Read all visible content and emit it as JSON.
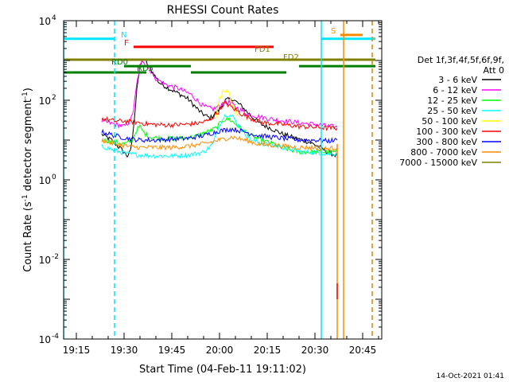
{
  "chart_data": {
    "type": "line",
    "title": "RHESSI Count Rates",
    "xlabel": "Start Time (04-Feb-11 19:11:02)",
    "ylabel_parts": [
      "Count Rate (s",
      "-1",
      " detector segment",
      "-1",
      ")"
    ],
    "footer_date": "14-Oct-2021 01:41",
    "y_scale": "log",
    "ylim": [
      0.0001,
      10000
    ],
    "y_ticks": [
      {
        "value": 0.0001,
        "base": "10",
        "exp": "-4"
      },
      {
        "value": 0.01,
        "base": "10",
        "exp": "-2"
      },
      {
        "value": 1,
        "base": "10",
        "exp": "0"
      },
      {
        "value": 100,
        "base": "10",
        "exp": "2"
      },
      {
        "value": 10000,
        "base": "10",
        "exp": "4"
      }
    ],
    "xlim": [
      "19:11",
      "20:51"
    ],
    "x_ticks": [
      "19:15",
      "19:30",
      "19:45",
      "20:00",
      "20:15",
      "20:30",
      "20:45"
    ],
    "legend": {
      "header": [
        "Det 1f,3f,4f,5f,6f,9f,",
        "Att 0"
      ],
      "placement": "right"
    },
    "series": [
      {
        "name": "3 - 6 keV",
        "color": "#000000",
        "points": [
          [
            "19:23",
            14
          ],
          [
            "19:26",
            10
          ],
          [
            "19:29",
            6
          ],
          [
            "19:31",
            4
          ],
          [
            "19:32",
            5
          ],
          [
            "19:33",
            20
          ],
          [
            "19:34",
            200
          ],
          [
            "19:35",
            700
          ],
          [
            "19:36",
            1100
          ],
          [
            "19:37",
            900
          ],
          [
            "19:39",
            500
          ],
          [
            "19:41",
            280
          ],
          [
            "19:44",
            200
          ],
          [
            "19:47",
            150
          ],
          [
            "19:50",
            110
          ],
          [
            "19:54",
            50
          ],
          [
            "19:57",
            35
          ],
          [
            "20:00",
            60
          ],
          [
            "20:02",
            100
          ],
          [
            "20:04",
            110
          ],
          [
            "20:07",
            70
          ],
          [
            "20:10",
            40
          ],
          [
            "20:13",
            25
          ],
          [
            "20:16",
            20
          ],
          [
            "20:20",
            14
          ],
          [
            "20:24",
            11
          ],
          [
            "20:28",
            9
          ],
          [
            "20:31",
            7
          ],
          [
            "20:34",
            5
          ],
          [
            "20:37",
            4
          ]
        ]
      },
      {
        "name": "6 - 12 keV",
        "color": "#ff00ff",
        "points": [
          [
            "19:23",
            30
          ],
          [
            "19:27",
            25
          ],
          [
            "19:30",
            22
          ],
          [
            "19:32",
            30
          ],
          [
            "19:33",
            60
          ],
          [
            "19:34",
            250
          ],
          [
            "19:35",
            700
          ],
          [
            "19:36",
            1000
          ],
          [
            "19:38",
            600
          ],
          [
            "19:40",
            350
          ],
          [
            "19:43",
            250
          ],
          [
            "19:47",
            200
          ],
          [
            "19:51",
            140
          ],
          [
            "19:55",
            70
          ],
          [
            "19:58",
            60
          ],
          [
            "20:01",
            80
          ],
          [
            "20:03",
            90
          ],
          [
            "20:06",
            60
          ],
          [
            "20:09",
            45
          ],
          [
            "20:13",
            38
          ],
          [
            "20:17",
            33
          ],
          [
            "20:21",
            30
          ],
          [
            "20:25",
            27
          ],
          [
            "20:30",
            25
          ],
          [
            "20:35",
            22
          ],
          [
            "20:37",
            21
          ]
        ]
      },
      {
        "name": "12 - 25 keV",
        "color": "#00ff00",
        "points": [
          [
            "19:23",
            10
          ],
          [
            "19:27",
            9
          ],
          [
            "19:30",
            8
          ],
          [
            "19:32",
            9
          ],
          [
            "19:33",
            12
          ],
          [
            "19:34",
            18
          ],
          [
            "19:35",
            22
          ],
          [
            "19:36",
            16
          ],
          [
            "19:38",
            12
          ],
          [
            "19:42",
            11
          ],
          [
            "19:47",
            11
          ],
          [
            "19:52",
            12
          ],
          [
            "19:56",
            16
          ],
          [
            "19:59",
            20
          ],
          [
            "20:01",
            32
          ],
          [
            "20:03",
            34
          ],
          [
            "20:06",
            22
          ],
          [
            "20:09",
            14
          ],
          [
            "20:13",
            10
          ],
          [
            "20:17",
            8
          ],
          [
            "20:21",
            6
          ],
          [
            "20:25",
            5
          ],
          [
            "20:30",
            5
          ],
          [
            "20:34",
            5
          ],
          [
            "20:37",
            5
          ]
        ]
      },
      {
        "name": "25 - 50 keV",
        "color": "#00ffff",
        "points": [
          [
            "19:23",
            7
          ],
          [
            "19:27",
            5.5
          ],
          [
            "19:31",
            4.5
          ],
          [
            "19:35",
            4.2
          ],
          [
            "19:40",
            4
          ],
          [
            "19:45",
            4
          ],
          [
            "19:50",
            4.2
          ],
          [
            "19:55",
            5
          ],
          [
            "19:58",
            8
          ],
          [
            "20:00",
            25
          ],
          [
            "20:02",
            45
          ],
          [
            "20:04",
            40
          ],
          [
            "20:07",
            18
          ],
          [
            "20:10",
            10
          ],
          [
            "20:14",
            8
          ],
          [
            "20:18",
            7
          ],
          [
            "20:22",
            6
          ],
          [
            "20:26",
            5
          ],
          [
            "20:30",
            5
          ],
          [
            "20:34",
            4.5
          ],
          [
            "20:37",
            4.5
          ]
        ]
      },
      {
        "name": "50 - 100 keV",
        "color": "#ffff00",
        "points": [
          [
            "19:59",
            40
          ],
          [
            "20:00",
            110
          ],
          [
            "20:01",
            160
          ],
          [
            "20:02",
            170
          ],
          [
            "20:03",
            140
          ],
          [
            "20:04",
            70
          ],
          [
            "20:06",
            40
          ]
        ]
      },
      {
        "name": "100 - 300 keV",
        "color": "#ff0000",
        "points": [
          [
            "19:23",
            35
          ],
          [
            "19:27",
            30
          ],
          [
            "19:30",
            30
          ],
          [
            "19:34",
            28
          ],
          [
            "19:38",
            25
          ],
          [
            "19:42",
            24
          ],
          [
            "19:46",
            24
          ],
          [
            "19:50",
            25
          ],
          [
            "19:54",
            27
          ],
          [
            "19:57",
            32
          ],
          [
            "20:00",
            55
          ],
          [
            "20:01",
            80
          ],
          [
            "20:02",
            85
          ],
          [
            "20:04",
            65
          ],
          [
            "20:07",
            45
          ],
          [
            "20:10",
            35
          ],
          [
            "20:13",
            28
          ],
          [
            "20:17",
            26
          ],
          [
            "20:21",
            24
          ],
          [
            "20:25",
            22
          ],
          [
            "20:30",
            21
          ],
          [
            "20:34",
            20
          ],
          [
            "20:37",
            20
          ]
        ]
      },
      {
        "name": "300 - 800 keV",
        "color": "#0000ff",
        "points": [
          [
            "19:23",
            16
          ],
          [
            "19:27",
            13
          ],
          [
            "19:31",
            11
          ],
          [
            "19:35",
            10
          ],
          [
            "19:40",
            10
          ],
          [
            "19:45",
            10.5
          ],
          [
            "19:50",
            11
          ],
          [
            "19:55",
            13
          ],
          [
            "20:00",
            17
          ],
          [
            "20:04",
            19
          ],
          [
            "20:08",
            16
          ],
          [
            "20:12",
            13
          ],
          [
            "20:16",
            12
          ],
          [
            "20:20",
            11
          ],
          [
            "20:25",
            10
          ],
          [
            "20:30",
            10
          ],
          [
            "20:34",
            9.5
          ],
          [
            "20:37",
            10
          ]
        ]
      },
      {
        "name": "800 - 7000 keV",
        "color": "#ff8c00",
        "points": [
          [
            "19:23",
            10
          ],
          [
            "19:27",
            8
          ],
          [
            "19:31",
            7
          ],
          [
            "19:35",
            6.5
          ],
          [
            "19:40",
            6.5
          ],
          [
            "19:45",
            6.5
          ],
          [
            "19:50",
            7
          ],
          [
            "19:55",
            8
          ],
          [
            "20:00",
            10
          ],
          [
            "20:04",
            12
          ],
          [
            "20:08",
            10
          ],
          [
            "20:12",
            8
          ],
          [
            "20:16",
            7.5
          ],
          [
            "20:20",
            7
          ],
          [
            "20:25",
            6.5
          ],
          [
            "20:30",
            6.5
          ],
          [
            "20:34",
            6
          ],
          [
            "20:37",
            6.5
          ]
        ]
      },
      {
        "name": "7000 - 15000 keV",
        "color": "#808000",
        "points": []
      }
    ],
    "flag_bars": [
      {
        "label": "N",
        "color": "#00e5ff",
        "y": 3500,
        "x1": "19:11",
        "x2": "19:27",
        "label_x": "19:29"
      },
      {
        "label": "S",
        "color": "#ff8c00",
        "y": 4400,
        "x1": "20:38",
        "x2": "20:45",
        "label_x": "20:35"
      },
      {
        "label": "S",
        "color": "#00e5ff",
        "y": 3500,
        "x1": "20:32",
        "x2": "20:49",
        "label_x": "",
        "hide_label": true
      },
      {
        "label": "F",
        "color": "#ff0000",
        "y": 2200,
        "x1": "19:33",
        "x2": "20:17",
        "label_x": "19:30"
      },
      {
        "label": "FD1",
        "color": "#808000",
        "y": 1050,
        "x1": "19:11",
        "x2": "20:49",
        "label_x": "20:11",
        "label_y": 1500
      },
      {
        "label": "FD2",
        "color": "#808000",
        "y": 1050,
        "x1": "20:17",
        "x2": "20:17",
        "label_x": "20:20",
        "label_y": 950
      },
      {
        "label": "RD0",
        "color": "#008000",
        "y": 720,
        "x1": "19:30",
        "x2": "19:51",
        "label_x": "19:26"
      },
      {
        "label": "RD0",
        "color": "#008000",
        "y": 720,
        "x1": "20:25",
        "x2": "20:49",
        "label_x": "",
        "hide_label": true
      },
      {
        "label": "RD5",
        "color": "#008000",
        "y": 500,
        "x1": "19:11",
        "x2": "19:37",
        "label_x": "19:34",
        "label_y": 500
      },
      {
        "label": "RD5",
        "color": "#008000",
        "y": 500,
        "x1": "19:51",
        "x2": "20:21",
        "label_x": "",
        "hide_label": true
      }
    ],
    "vlines": [
      {
        "time": "19:11",
        "color": "#00e5ff",
        "dashed": false
      },
      {
        "time": "19:27",
        "color": "#00e5ff",
        "dashed": true
      },
      {
        "time": "20:32",
        "color": "#00e5ff",
        "dashed": false
      },
      {
        "time": "20:39",
        "color": "#ff8c00",
        "dashed": false
      },
      {
        "time": "20:48",
        "color": "#00e5ff",
        "dashed": true
      },
      {
        "time": "20:48",
        "color": "#ff8c00",
        "dashed": true
      }
    ],
    "spikes": [
      {
        "time": "20:37",
        "color": "#ff8c00",
        "from": 0.0001,
        "to": 8
      },
      {
        "time": "20:37",
        "color": "#ff0000",
        "from": 0.001,
        "to": 0.0025
      }
    ]
  }
}
